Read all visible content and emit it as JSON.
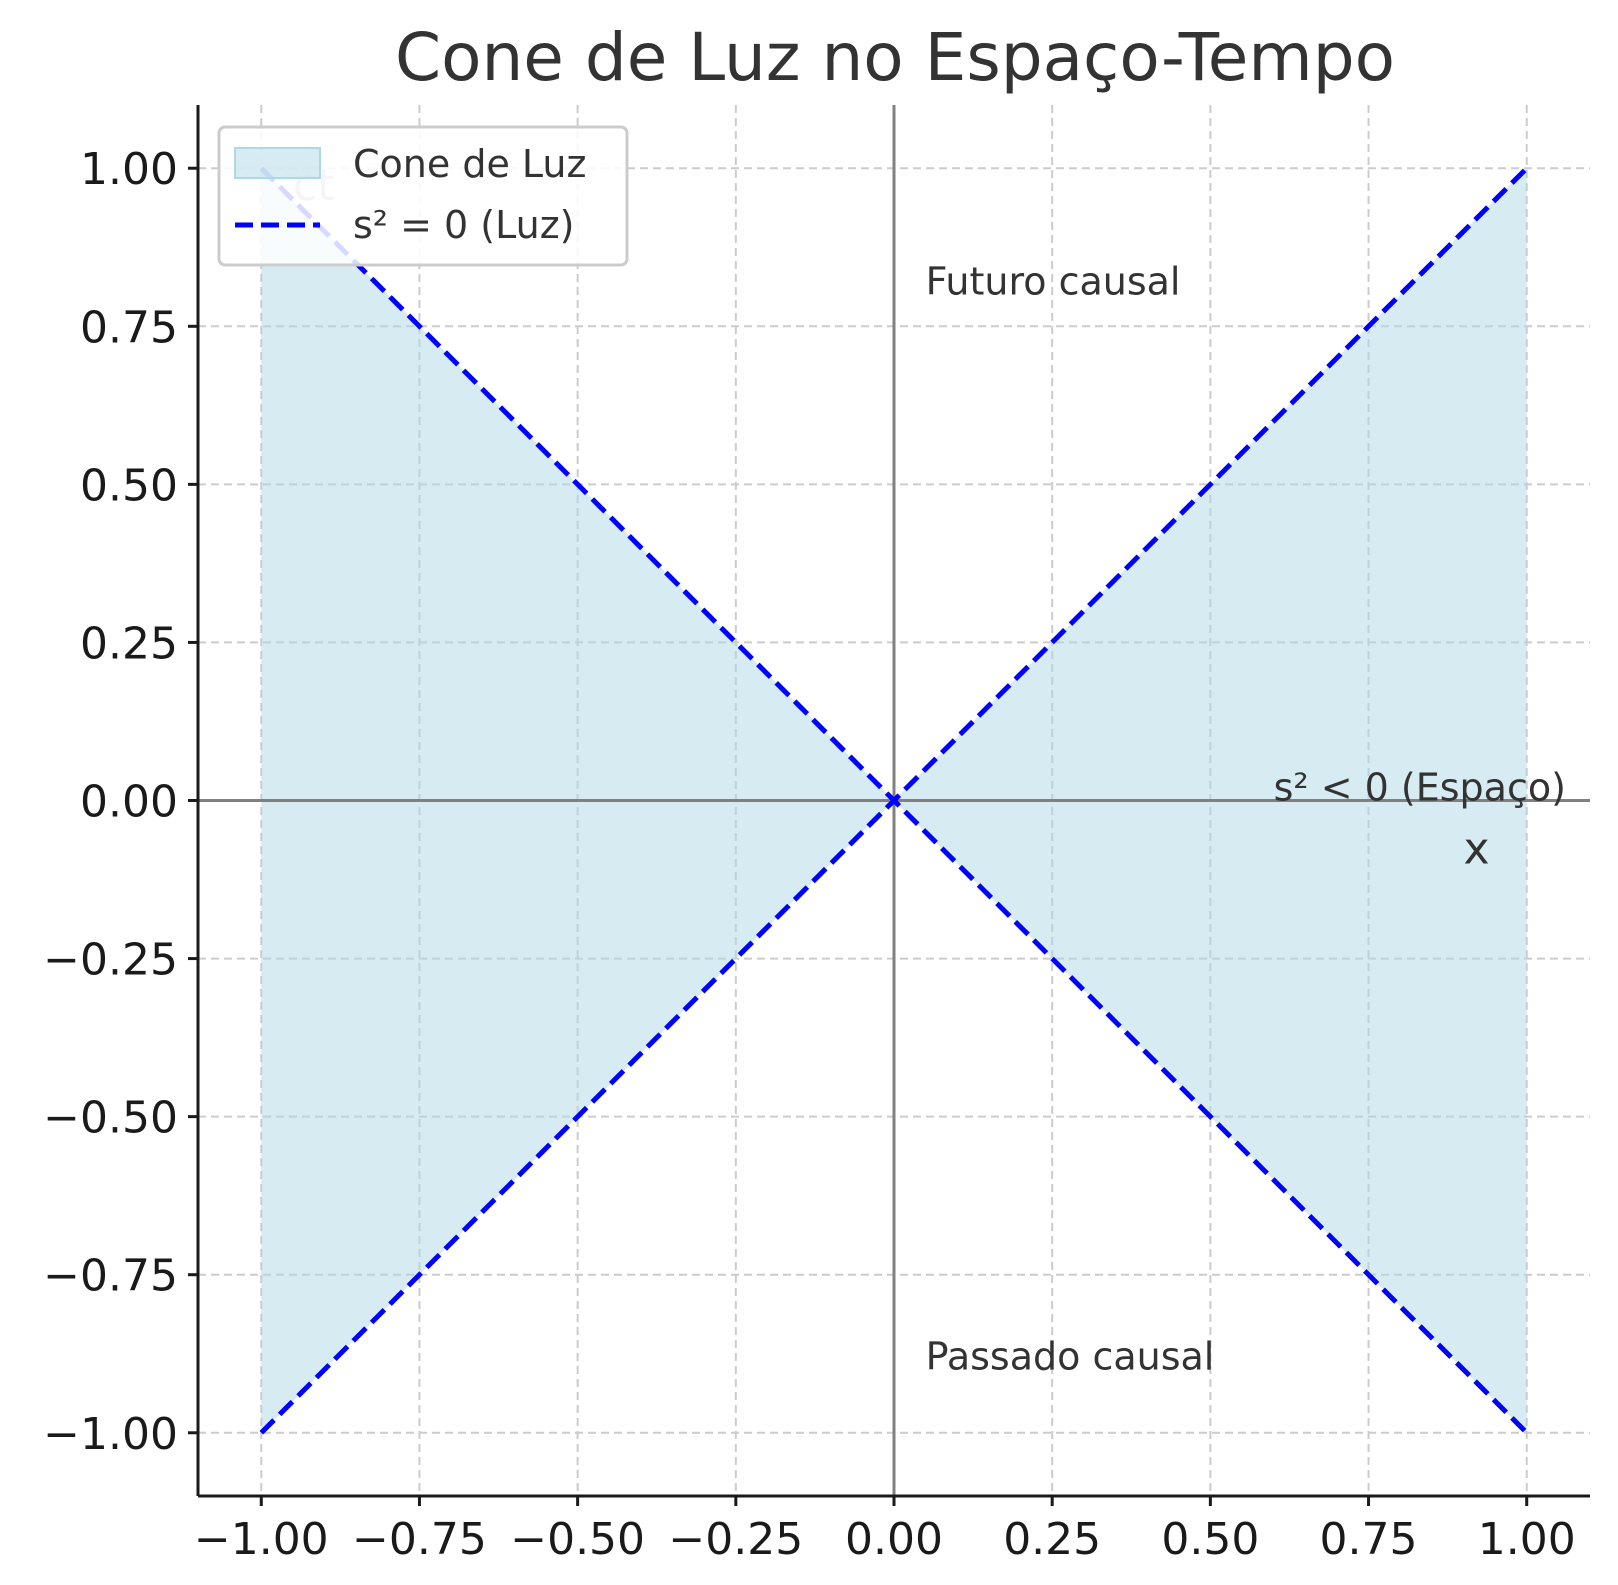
{
  "chart_data": {
    "type": "area",
    "title": "Cone de Luz no Espaço-Tempo",
    "xlabel": "",
    "ylabel": "",
    "xlim": [
      -1.1,
      1.1
    ],
    "ylim": [
      -1.1,
      1.1
    ],
    "grid": true,
    "legend_position": "upper-left",
    "x_ticks": [
      "−1.00",
      "−0.75",
      "−0.50",
      "−0.25",
      "0.00",
      "0.25",
      "0.50",
      "0.75",
      "1.00"
    ],
    "y_ticks": [
      "1.00",
      "0.75",
      "0.50",
      "0.25",
      "0.00",
      "−0.25",
      "−0.50",
      "−0.75",
      "−1.00"
    ],
    "x_tick_values": [
      -1,
      -0.75,
      -0.5,
      -0.25,
      0,
      0.25,
      0.5,
      0.75,
      1
    ],
    "y_tick_values": [
      1,
      0.75,
      0.5,
      0.25,
      0,
      -0.25,
      -0.5,
      -0.75,
      -1
    ],
    "series": [
      {
        "name": "Cone de Luz",
        "kind": "fill_between",
        "color": "#add8e6",
        "x": [
          -1,
          0,
          1
        ],
        "upper": [
          1,
          0,
          1
        ],
        "lower": [
          -1,
          0,
          -1
        ]
      },
      {
        "name": "s² = 0 (Luz)",
        "kind": "line",
        "style": "dashed",
        "color": "#0000ff",
        "lines": [
          {
            "x": [
              -1,
              1
            ],
            "y": [
              -1,
              1
            ]
          },
          {
            "x": [
              -1,
              1
            ],
            "y": [
              1,
              -1
            ]
          }
        ]
      }
    ],
    "annotations": [
      {
        "text": "Futuro causal",
        "x": 0.05,
        "y": 0.8,
        "kind": "annot"
      },
      {
        "text": "Passado causal",
        "x": 0.05,
        "y": -0.9,
        "kind": "annot"
      },
      {
        "text": "s² < 0 (Espaço)",
        "x": 0.6,
        "y": 0.0,
        "kind": "annot"
      },
      {
        "text": "x",
        "x": 0.9,
        "y": -0.1,
        "kind": "axis-annot"
      },
      {
        "text": "ct",
        "x": -0.95,
        "y": 0.95,
        "kind": "axis-annot-faint"
      }
    ],
    "colors": {
      "fill": "#add8e6",
      "light_line": "#0000ff",
      "axis_line": "#808080",
      "grid": "#cccccc"
    }
  }
}
